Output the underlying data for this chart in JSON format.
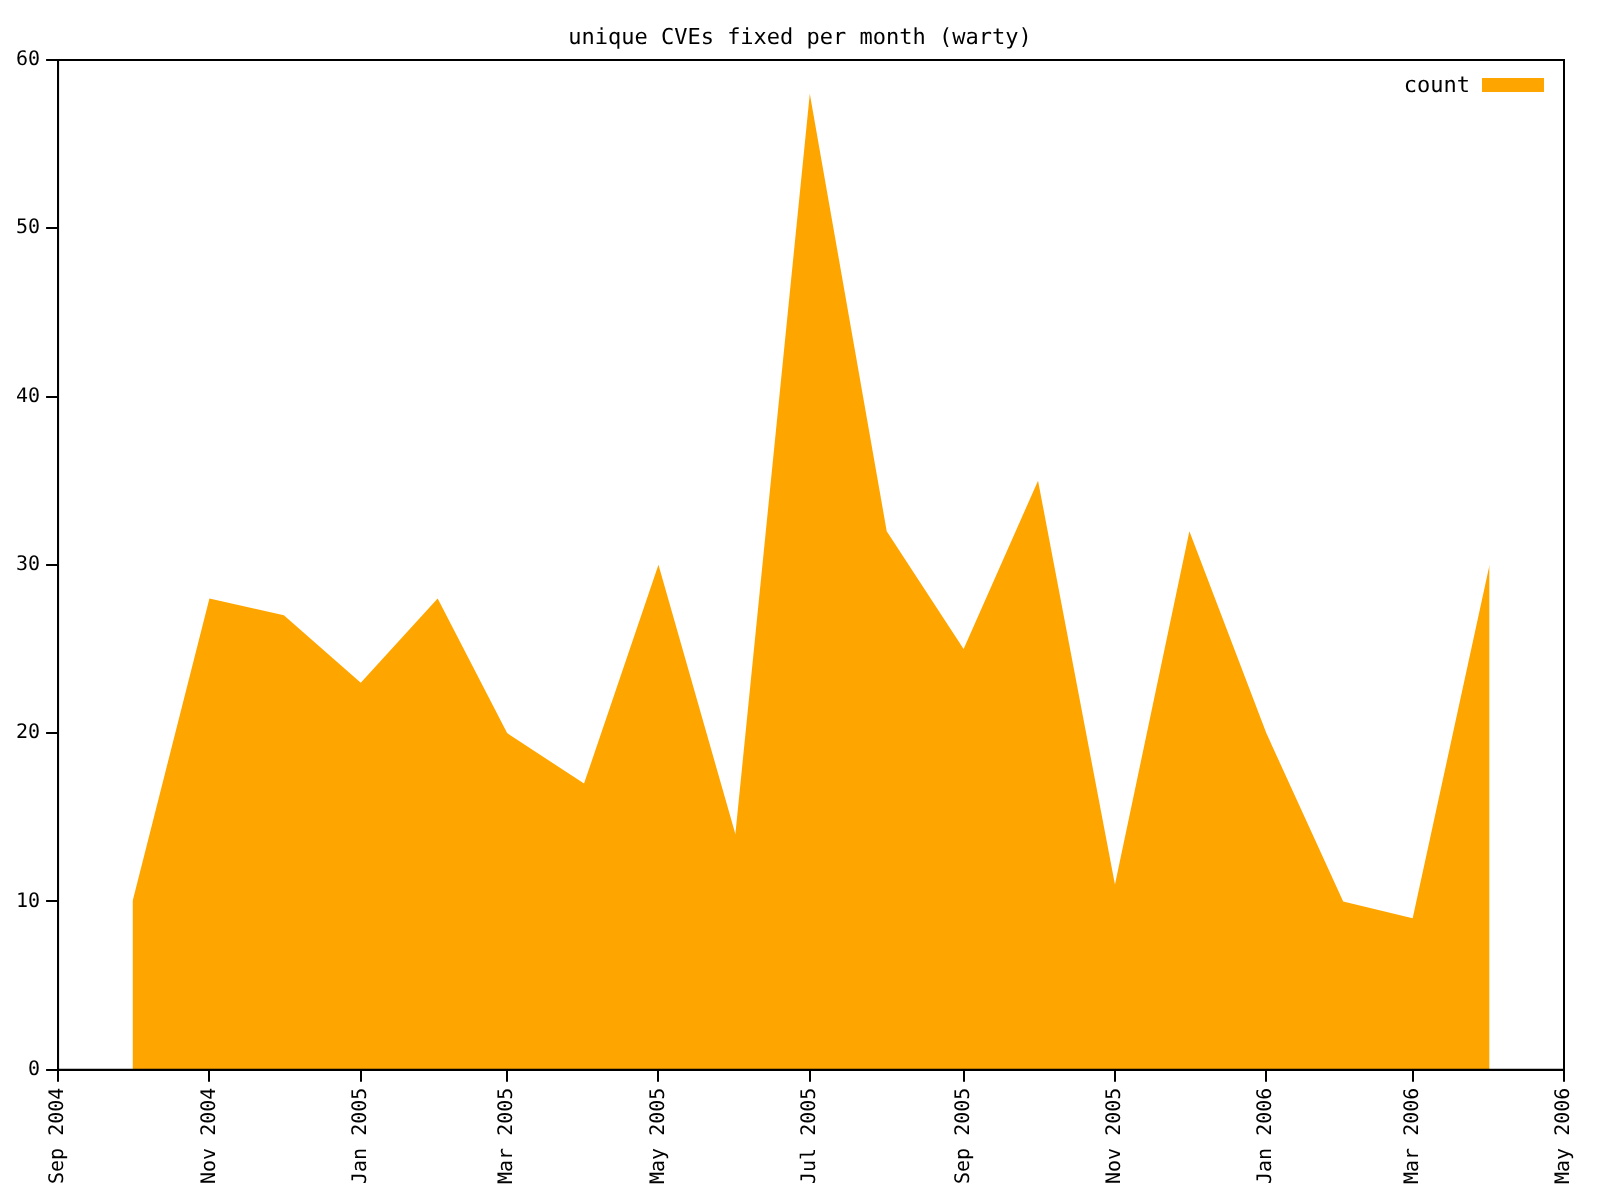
{
  "chart_data": {
    "type": "area",
    "title": "unique CVEs fixed per month (warty)",
    "x": [
      "2004-10",
      "2004-11",
      "2004-12",
      "2005-01",
      "2005-02",
      "2005-03",
      "2005-04",
      "2005-05",
      "2005-06",
      "2005-07",
      "2005-08",
      "2005-09",
      "2005-10",
      "2005-11",
      "2005-12",
      "2006-01",
      "2006-02",
      "2006-03",
      "2006-04"
    ],
    "series": [
      {
        "name": "count",
        "color": "#ffa500",
        "values": [
          10,
          28,
          27,
          23,
          28,
          20,
          17,
          30,
          14,
          58,
          32,
          25,
          35,
          11,
          32,
          20,
          10,
          9,
          30
        ]
      }
    ],
    "xlim": [
      "2004-09",
      "2006-05"
    ],
    "xticks": [
      {
        "value": "2004-09",
        "label": "Sep 2004"
      },
      {
        "value": "2004-11",
        "label": "Nov 2004"
      },
      {
        "value": "2005-01",
        "label": "Jan 2005"
      },
      {
        "value": "2005-03",
        "label": "Mar 2005"
      },
      {
        "value": "2005-05",
        "label": "May 2005"
      },
      {
        "value": "2005-07",
        "label": "Jul 2005"
      },
      {
        "value": "2005-09",
        "label": "Sep 2005"
      },
      {
        "value": "2005-11",
        "label": "Nov 2005"
      },
      {
        "value": "2006-01",
        "label": "Jan 2006"
      },
      {
        "value": "2006-03",
        "label": "Mar 2006"
      },
      {
        "value": "2006-05",
        "label": "May 2006"
      }
    ],
    "ylim": [
      0,
      60
    ],
    "yticks": [
      0,
      10,
      20,
      30,
      40,
      50,
      60
    ],
    "legend": "top right",
    "grid": false
  }
}
